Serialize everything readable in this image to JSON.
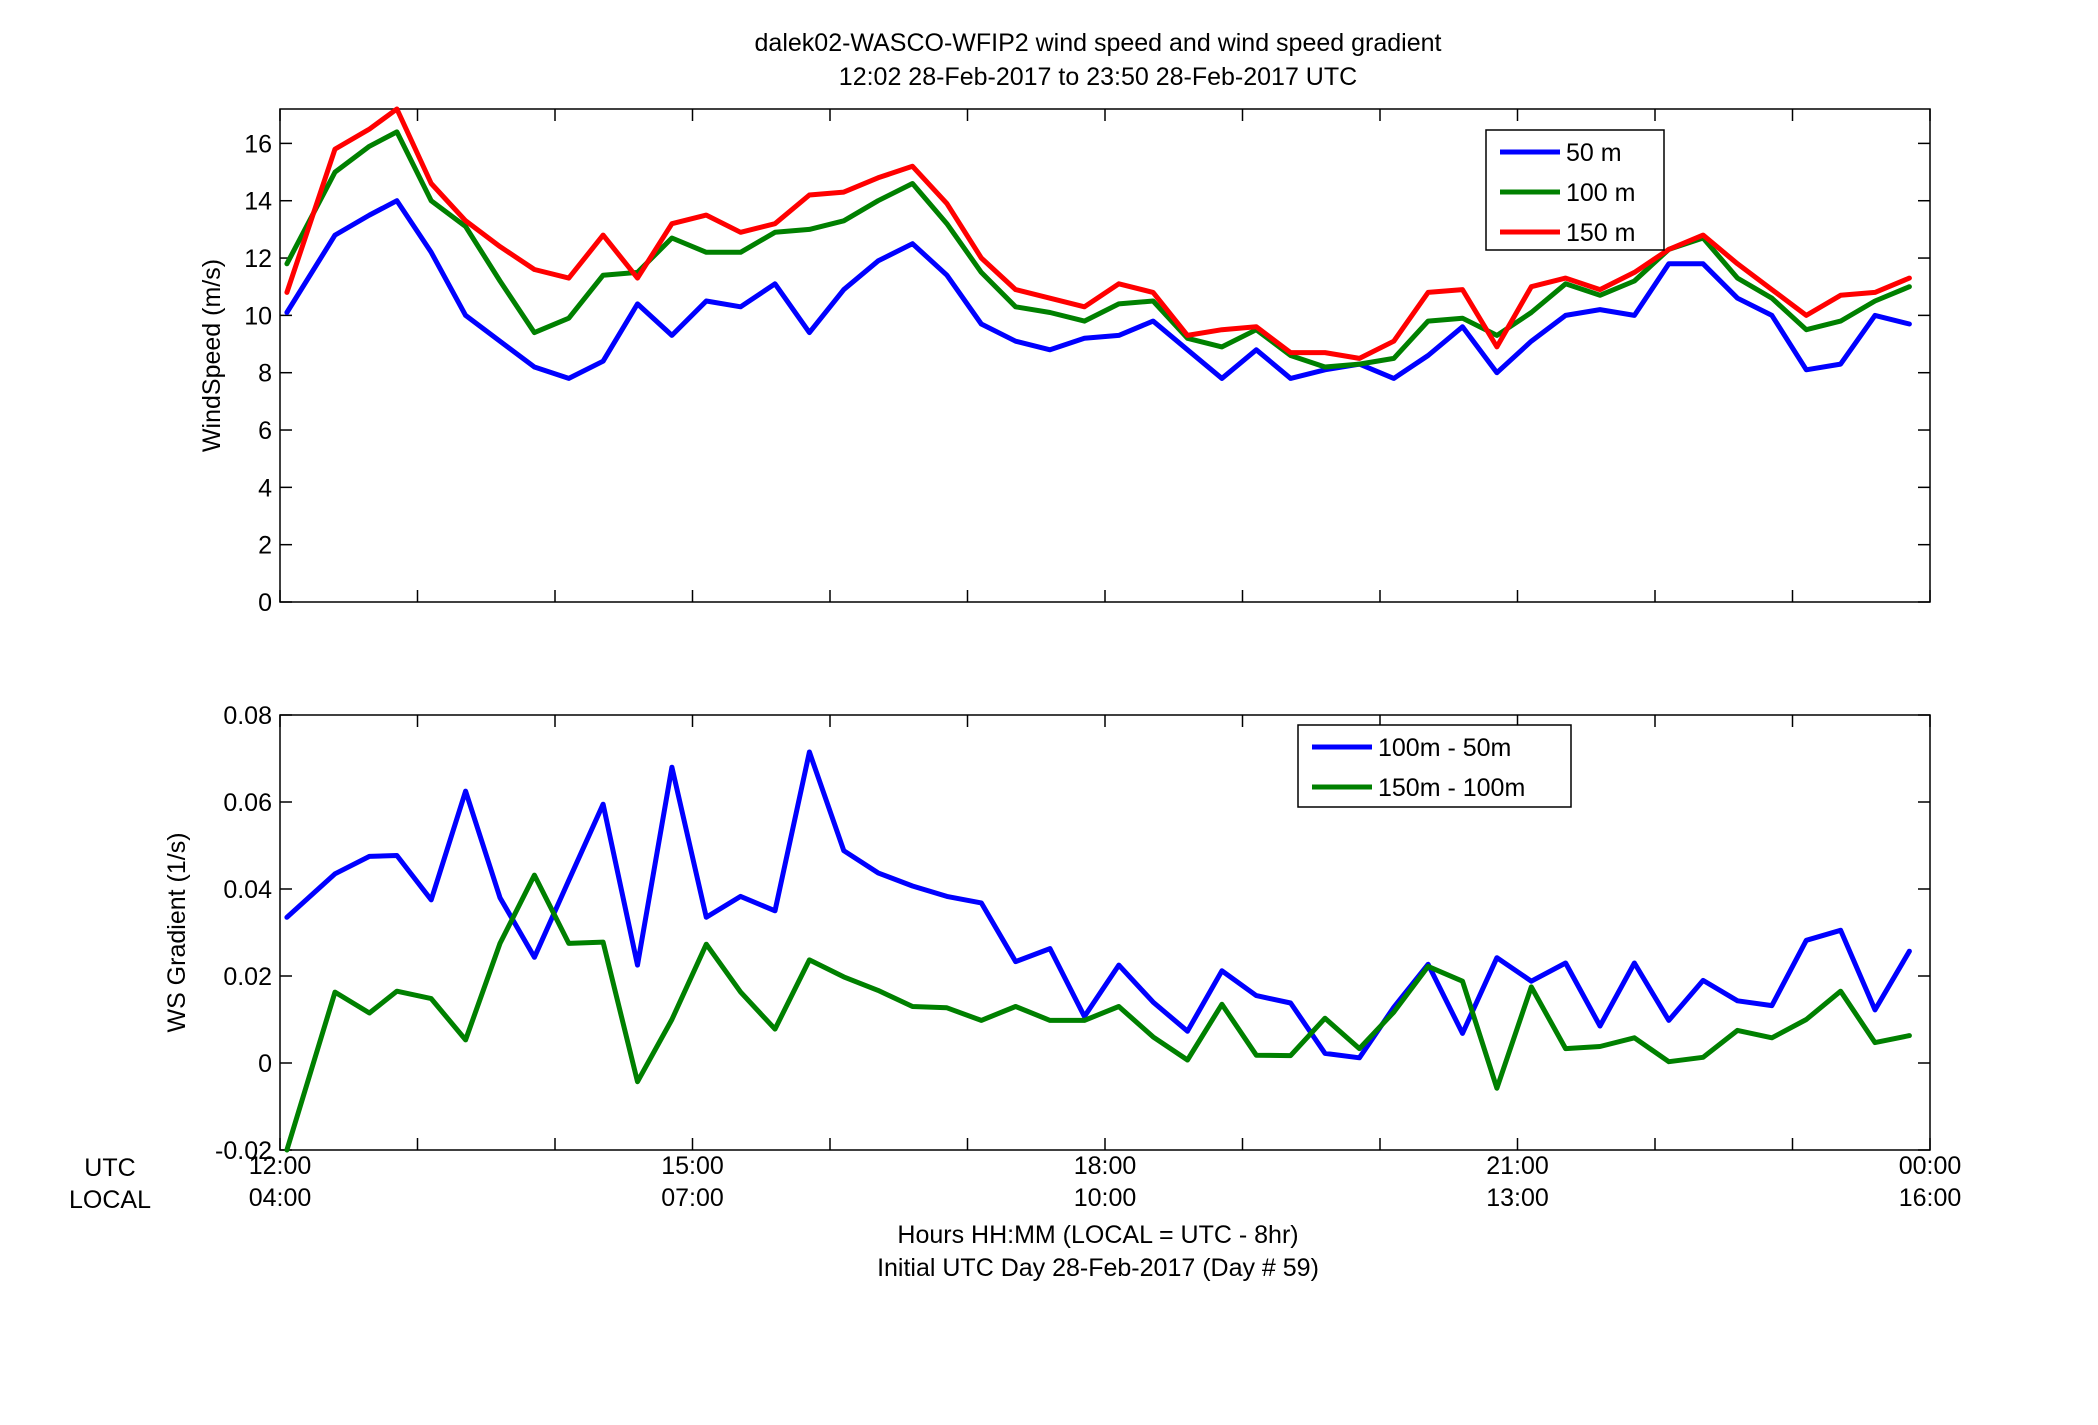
{
  "figure": {
    "title_line1": "dalek02-WASCO-WFIP2  wind speed and wind speed gradient",
    "title_line2": "12:02 28-Feb-2017 to 23:50 28-Feb-2017  UTC",
    "row_label_utc": "UTC",
    "row_label_local": "LOCAL",
    "xlabel_line1": "Hours HH:MM  (LOCAL = UTC - 8hr)",
    "xlabel_line2": "Initial UTC Day 28-Feb-2017 (Day # 59)",
    "utc_ticks": [
      "12:00",
      "15:00",
      "18:00",
      "21:00",
      "00:00"
    ],
    "local_ticks": [
      "04:00",
      "07:00",
      "10:00",
      "13:00",
      "16:00"
    ],
    "colors": {
      "blue": "#0000ff",
      "green": "#008000",
      "red": "#ff0000"
    }
  },
  "chart_data": [
    {
      "type": "line",
      "ylabel": "WindSpeed (m/s)",
      "ylim": [
        0,
        17.2
      ],
      "yticks": [
        0,
        2,
        4,
        6,
        8,
        10,
        12,
        14,
        16
      ],
      "xlim_hours_utc": [
        12,
        24
      ],
      "legend_position": "top-right",
      "x_hours_utc": [
        12.05,
        12.4,
        12.65,
        12.85,
        13.1,
        13.35,
        13.6,
        13.85,
        14.1,
        14.35,
        14.6,
        14.85,
        15.1,
        15.35,
        15.6,
        15.85,
        16.1,
        16.35,
        16.6,
        16.85,
        17.1,
        17.35,
        17.6,
        17.85,
        18.1,
        18.35,
        18.6,
        18.85,
        19.1,
        19.35,
        19.6,
        19.85,
        20.1,
        20.35,
        20.6,
        20.85,
        21.1,
        21.35,
        21.6,
        21.85,
        22.1,
        22.35,
        22.6,
        22.85,
        23.1,
        23.35,
        23.6,
        23.85
      ],
      "series": [
        {
          "name": "50 m",
          "color": "#0000ff",
          "values": [
            10.1,
            12.8,
            13.5,
            14.0,
            12.2,
            10.0,
            9.1,
            8.2,
            7.8,
            8.4,
            10.4,
            9.3,
            10.5,
            10.3,
            11.1,
            9.4,
            10.9,
            11.9,
            12.5,
            11.4,
            9.7,
            9.1,
            8.8,
            9.2,
            9.3,
            9.8,
            8.8,
            7.8,
            8.8,
            7.8,
            8.1,
            8.3,
            7.8,
            8.6,
            9.6,
            8.0,
            9.1,
            10.0,
            10.2,
            10.0,
            11.8,
            11.8,
            10.6,
            10.0,
            8.1,
            8.3,
            10.0,
            9.7
          ]
        },
        {
          "name": "100 m",
          "color": "#008000",
          "values": [
            11.8,
            15.0,
            15.9,
            16.4,
            14.0,
            13.1,
            11.2,
            9.4,
            9.9,
            11.4,
            11.5,
            12.7,
            12.2,
            12.2,
            12.9,
            13.0,
            13.3,
            14.0,
            14.6,
            13.2,
            11.5,
            10.3,
            10.1,
            9.8,
            10.4,
            10.5,
            9.2,
            8.9,
            9.5,
            8.6,
            8.2,
            8.3,
            8.5,
            9.8,
            9.9,
            9.3,
            10.1,
            11.1,
            10.7,
            11.2,
            12.3,
            12.7,
            11.3,
            10.6,
            9.5,
            9.8,
            10.5,
            11.0
          ]
        },
        {
          "name": "150 m",
          "color": "#ff0000",
          "values": [
            10.8,
            15.8,
            16.5,
            17.2,
            14.6,
            13.3,
            12.4,
            11.6,
            11.3,
            12.8,
            11.3,
            13.2,
            13.5,
            12.9,
            13.2,
            14.2,
            14.3,
            14.8,
            15.2,
            13.9,
            12.0,
            10.9,
            10.6,
            10.3,
            11.1,
            10.8,
            9.3,
            9.5,
            9.6,
            8.7,
            8.7,
            8.5,
            9.1,
            10.8,
            10.9,
            8.9,
            11.0,
            11.3,
            10.9,
            11.5,
            12.3,
            12.8,
            11.8,
            10.9,
            10.0,
            10.7,
            10.8,
            11.3
          ]
        }
      ]
    },
    {
      "type": "line",
      "ylabel": "WS Gradient (1/s)",
      "ylim": [
        -0.02,
        0.08
      ],
      "yticks": [
        -0.02,
        0,
        0.02,
        0.04,
        0.06,
        0.08
      ],
      "xlim_hours_utc": [
        12,
        24
      ],
      "legend_position": "top-right",
      "x_hours_utc": [
        12.05,
        12.4,
        12.65,
        12.85,
        13.1,
        13.35,
        13.6,
        13.85,
        14.1,
        14.35,
        14.6,
        14.85,
        15.1,
        15.35,
        15.6,
        15.85,
        16.1,
        16.35,
        16.6,
        16.85,
        17.1,
        17.35,
        17.6,
        17.85,
        18.1,
        18.35,
        18.6,
        18.85,
        19.1,
        19.35,
        19.6,
        19.85,
        20.1,
        20.35,
        20.6,
        20.85,
        21.1,
        21.35,
        21.6,
        21.85,
        22.1,
        22.35,
        22.6,
        22.85,
        23.1,
        23.35,
        23.6,
        23.85
      ],
      "series": [
        {
          "name": "100m - 50m",
          "color": "#0000ff",
          "values": [
            0.0335,
            0.0435,
            0.0475,
            0.0477,
            0.0375,
            0.0625,
            0.038,
            0.0243,
            0.042,
            0.0595,
            0.0225,
            0.068,
            0.0335,
            0.0383,
            0.035,
            0.0715,
            0.0488,
            0.0437,
            0.0407,
            0.0383,
            0.0368,
            0.0233,
            0.0263,
            0.0107,
            0.0225,
            0.014,
            0.0073,
            0.0212,
            0.0155,
            0.0138,
            0.0022,
            0.0012,
            0.0128,
            0.0227,
            0.0068,
            0.0242,
            0.0188,
            0.023,
            0.0085,
            0.023,
            0.0098,
            0.019,
            0.0143,
            0.0132,
            0.0282,
            0.0305,
            0.0122,
            0.0257
          ]
        },
        {
          "name": "150m - 100m",
          "color": "#008000",
          "values": [
            -0.02,
            0.0163,
            0.0115,
            0.0165,
            0.0148,
            0.0053,
            0.0275,
            0.0432,
            0.0275,
            0.0278,
            -0.0043,
            0.01,
            0.0273,
            0.0163,
            0.0078,
            0.0237,
            0.0198,
            0.0167,
            0.013,
            0.0127,
            0.0098,
            0.013,
            0.0098,
            0.0098,
            0.013,
            0.006,
            0.0007,
            0.0135,
            0.0018,
            0.0017,
            0.0103,
            0.0033,
            0.0117,
            0.0222,
            0.0188,
            -0.0058,
            0.0175,
            0.0033,
            0.0038,
            0.0058,
            0.0003,
            0.0013,
            0.0075,
            0.0058,
            0.01,
            0.0165,
            0.0047,
            0.0063
          ]
        }
      ]
    }
  ]
}
